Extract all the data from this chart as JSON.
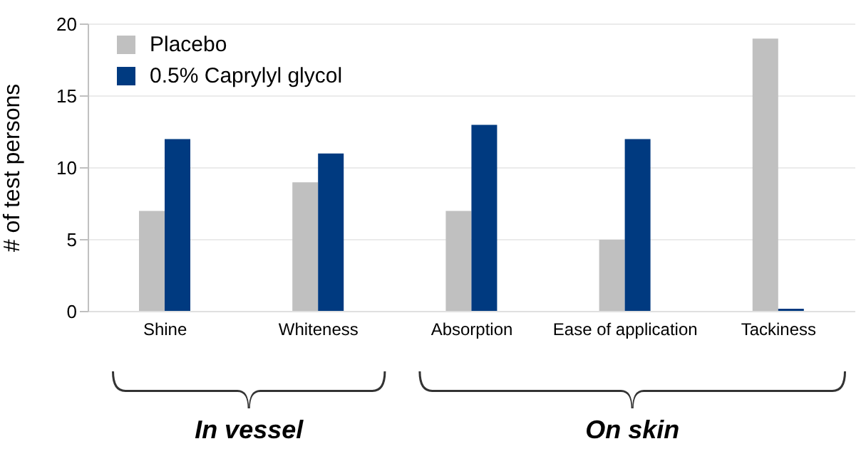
{
  "chart_data": {
    "type": "bar",
    "ylabel": "# of test persons",
    "categories": [
      "Shine",
      "Whiteness",
      "Absorption",
      "Ease of application",
      "Tackiness"
    ],
    "series": [
      {
        "name": "Placebo",
        "color": "#c0c0c0",
        "values": [
          7,
          9,
          7,
          5,
          19
        ]
      },
      {
        "name": "0.5% Caprylyl glycol",
        "color": "#003a80",
        "values": [
          12,
          11,
          13,
          12,
          0.2
        ]
      }
    ],
    "ylim": [
      0,
      20
    ],
    "yticks": [
      0,
      5,
      10,
      15,
      20
    ],
    "grid": "y",
    "legend": "top left",
    "annotations": [
      "In vessel",
      "On skin"
    ]
  }
}
